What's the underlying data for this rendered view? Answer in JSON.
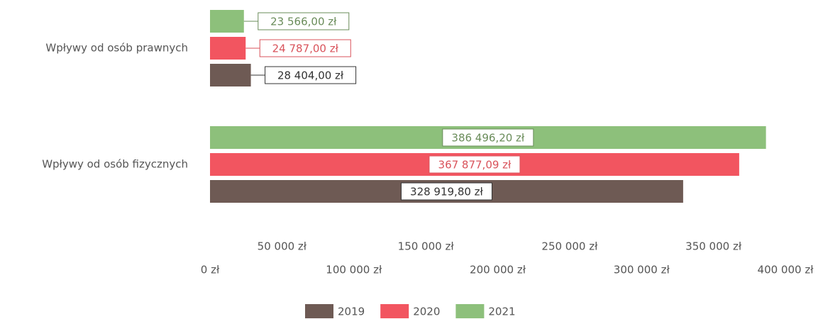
{
  "chart_data": {
    "type": "hbar",
    "categories": [
      "Wpływy od osób prawnych",
      "Wpływy od osób fizycznych"
    ],
    "series": [
      {
        "name": "2019",
        "color": "#6e5a54",
        "label_color": "#333333",
        "values": [
          28404.0,
          328919.8
        ],
        "value_labels": [
          "28 404,00 zł",
          "328 919,80 zł"
        ]
      },
      {
        "name": "2020",
        "color": "#f25560",
        "label_color": "#d9535b",
        "values": [
          24787.0,
          367877.09
        ],
        "value_labels": [
          "24 787,00 zł",
          "367 877,09 zł"
        ]
      },
      {
        "name": "2021",
        "color": "#8dc07b",
        "label_color": "#6a8c5a",
        "values": [
          23566.0,
          386496.2
        ],
        "value_labels": [
          "23 566,00 zł",
          "386 496,20 zł"
        ]
      }
    ],
    "xlim": [
      0,
      400000
    ],
    "xticks": [
      {
        "value": 0,
        "label": "0 zł"
      },
      {
        "value": 50000,
        "label": "50 000 zł"
      },
      {
        "value": 100000,
        "label": "100 000 zł"
      },
      {
        "value": 150000,
        "label": "150 000 zł"
      },
      {
        "value": 200000,
        "label": "200 000 zł"
      },
      {
        "value": 250000,
        "label": "250 000 zł"
      },
      {
        "value": 300000,
        "label": "300 000 zł"
      },
      {
        "value": 350000,
        "label": "350 000 zł"
      },
      {
        "value": 400000,
        "label": "400 000 zł"
      }
    ],
    "legend": "bottom",
    "grid": false
  }
}
